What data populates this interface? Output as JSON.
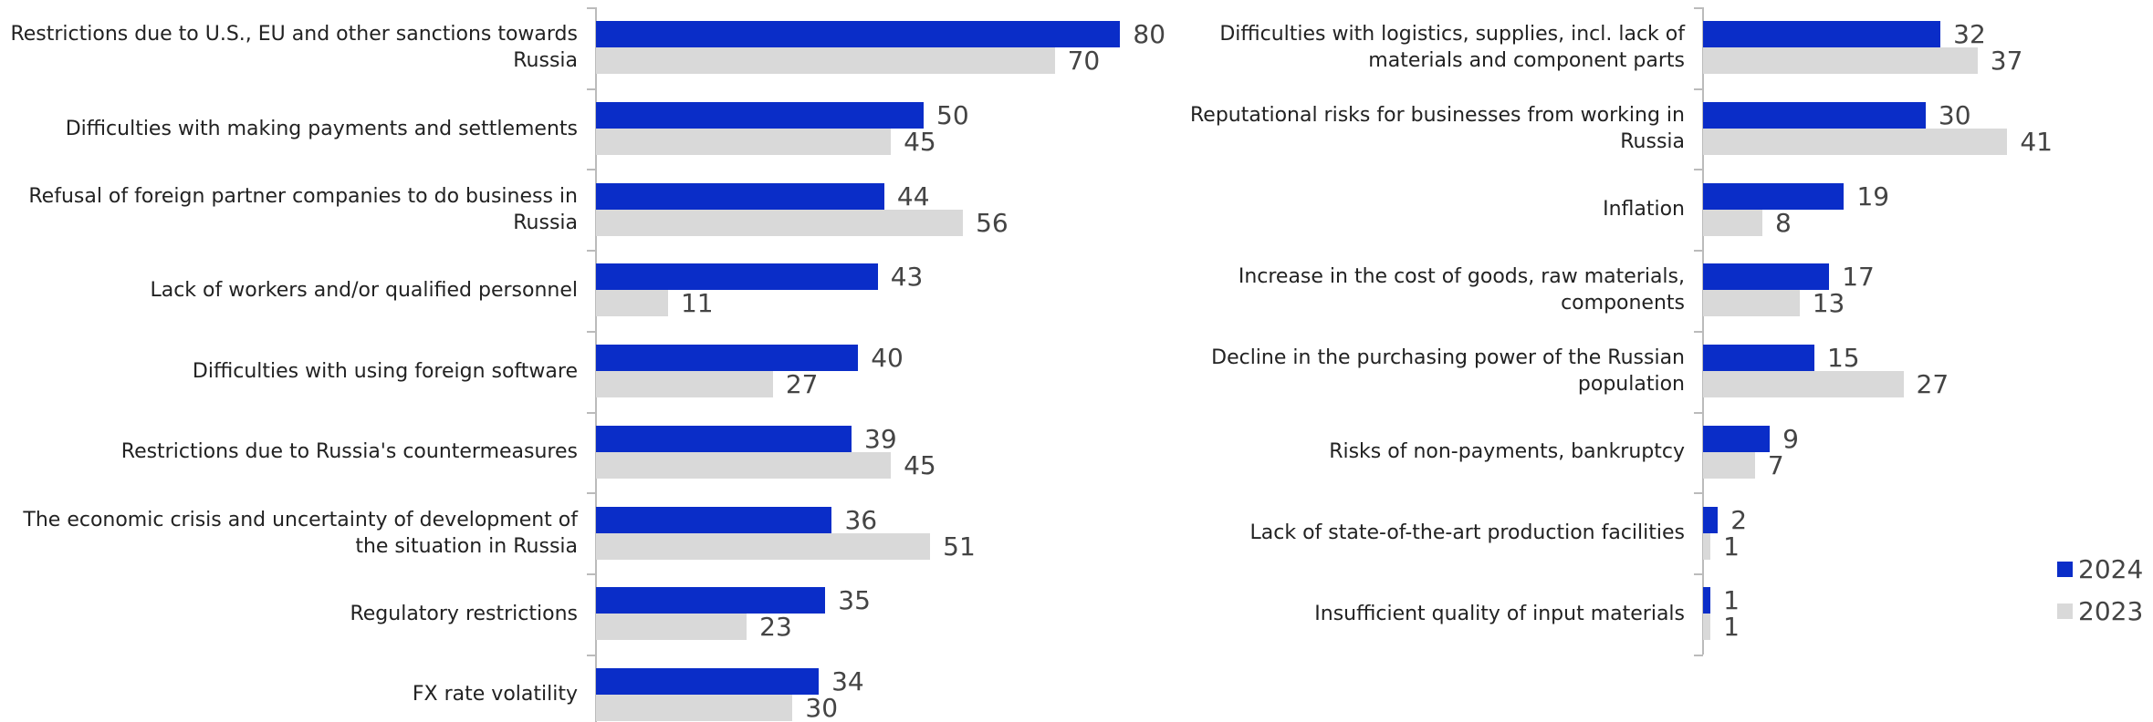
{
  "chart_data": [
    {
      "type": "bar",
      "orientation": "horizontal",
      "categories": [
        "Restrictions due to U.S., EU and other sanctions towards Russia",
        "Difficulties with making payments and settlements",
        "Refusal of foreign partner companies to do business in Russia",
        "Lack of workers and/or qualified personnel",
        "Difficulties with using foreign software",
        "Restrictions due to Russia's countermeasures",
        "The economic crisis and uncertainty of development of the situation in Russia",
        "Regulatory restrictions",
        "FX rate volatility"
      ],
      "series": [
        {
          "color": "#0a2dc8",
          "values": [
            80,
            50,
            44,
            43,
            40,
            39,
            36,
            35,
            34
          ]
        },
        {
          "color": "#d9d9d9",
          "values": [
            70,
            45,
            56,
            11,
            27,
            45,
            51,
            23,
            30
          ]
        }
      ]
    },
    {
      "type": "bar",
      "orientation": "horizontal",
      "categories": [
        "Difficulties with logistics, supplies, incl. lack of materials and component parts",
        "Reputational risks for businesses from working in Russia",
        "Inflation",
        "Increase in the cost of goods, raw materials, components",
        "Decline in the purchasing power of the Russian population",
        "Risks of non-payments, bankruptcy",
        "Lack of state-of-the-art production facilities",
        "Insufficient quality of input materials"
      ],
      "series": [
        {
          "name": "2024",
          "color": "#0a2dc8",
          "values": [
            32,
            30,
            19,
            17,
            15,
            9,
            2,
            1
          ]
        },
        {
          "name": "2023",
          "color": "#d9d9d9",
          "values": [
            37,
            41,
            8,
            13,
            27,
            7,
            1,
            1
          ]
        }
      ],
      "legend": "right"
    }
  ]
}
